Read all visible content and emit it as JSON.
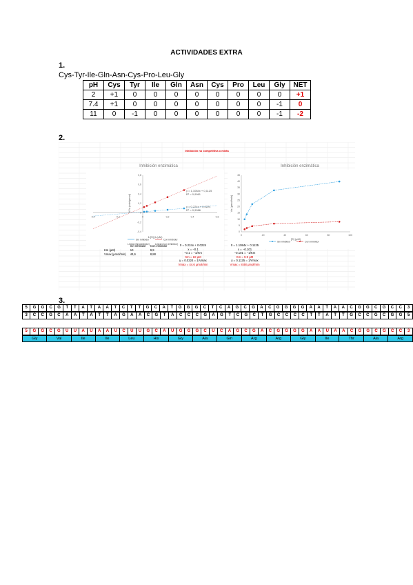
{
  "title": "ACTIVIDADES EXTRA",
  "sections": [
    "1.",
    "2.",
    "3."
  ],
  "sequence": "Cys-Tyr-Ile-Gln-Asn-Cys-Pro-Leu-Gly",
  "charge_table": {
    "headers": [
      "pH",
      "Cys",
      "Tyr",
      "Ile",
      "Gln",
      "Asn",
      "Cys",
      "Pro",
      "Leu",
      "Gly",
      "NET"
    ],
    "rows": [
      [
        "2",
        "+1",
        "0",
        "0",
        "0",
        "0",
        "0",
        "0",
        "0",
        "0",
        "+1"
      ],
      [
        "7.4",
        "+1",
        "0",
        "0",
        "0",
        "0",
        "0",
        "0",
        "0",
        "-1",
        "0"
      ],
      [
        "11",
        "0",
        "-1",
        "0",
        "0",
        "0",
        "0",
        "0",
        "0",
        "-1",
        "-2"
      ]
    ]
  },
  "figure_header": "Inhibición no competitiva o mixta",
  "chart_data": [
    {
      "type": "scatter",
      "title": "Inhibición enzimática",
      "xlabel": "1/[S] (L/μM)",
      "ylabel": "1/Vo (min/μmol)",
      "xlim": [
        -0.4,
        0.6
      ],
      "ylim": [
        -0.4,
        0.8
      ],
      "series": [
        {
          "name": "Sin inhibidor",
          "color": "#2f9fe0",
          "x": [
            0.011,
            0.033,
            0.1,
            0.2,
            0.333
          ],
          "y": [
            0.025,
            0.03,
            0.045,
            0.067,
            0.097
          ]
        },
        {
          "name": "Con inhibidor",
          "color": "#d42020",
          "x": [
            0.011,
            0.033,
            0.1,
            0.2,
            0.333
          ],
          "y": [
            0.125,
            0.15,
            0.224,
            0.336,
            0.485
          ]
        }
      ],
      "legend": [
        "Sin inhibidor",
        "Con inhibidor",
        "Lineal (Sin inhibidor)",
        "Lineal (Con inhibidor)"
      ],
      "annotations": [
        "y = 1,1084x + 0,1125",
        "R² = 0,9961",
        "y = 0,224x + 0,0224",
        "R² = 0,9986"
      ],
      "xticks": [
        "-0,4",
        "-0,2",
        "0",
        "0,2",
        "0,4",
        "0,6"
      ],
      "yticks": [
        "-0,4",
        "-0,2",
        "0",
        "0,2",
        "0,4",
        "0,6",
        "0,8"
      ]
    },
    {
      "type": "line",
      "title": "Inhibición enzimática",
      "xlabel": "[S] (μM)",
      "ylabel": "Vo (μmol/min)",
      "xlim": [
        0,
        100
      ],
      "ylim": [
        0,
        45
      ],
      "series": [
        {
          "name": "Sin inhibidor",
          "color": "#2f9fe0",
          "x": [
            3,
            5,
            10,
            30,
            90
          ],
          "y": [
            10,
            14,
            22,
            33,
            40
          ]
        },
        {
          "name": "Con inhibidor",
          "color": "#d42020",
          "x": [
            3,
            5,
            10,
            30,
            90
          ],
          "y": [
            2,
            3,
            4.5,
            6.5,
            8
          ]
        }
      ],
      "xticks": [
        "0",
        "20",
        "40",
        "60",
        "80",
        "100"
      ],
      "yticks": [
        "0",
        "5",
        "10",
        "15",
        "20",
        "25",
        "30",
        "35",
        "40",
        "45"
      ]
    }
  ],
  "kinetics": {
    "headers": [
      "",
      "Sin inhibidor",
      "Con inhibidor"
    ],
    "rows": [
      [
        "Km (μM)",
        "10",
        "9,9"
      ],
      [
        "Vmax (μmol/min)",
        "44,6",
        "8,88"
      ]
    ]
  },
  "equations_left": [
    "0 = 0.224x + 0.0224",
    "x = −0.1",
    "−0.1 = −1/Km",
    "Km = 10 μM",
    "y = 0.0224 = 1/Vmax",
    "Vmax = 44.6 μmol/min"
  ],
  "equations_right": [
    "0 = 1.1084x + 0.1125",
    "x = −0.101",
    "−0.101 = −1/Km",
    "Km = 9.9 μM",
    "y = 0.1125 = 1/Vmax",
    "Vmax = 8.88 μmol/min"
  ],
  "dna_top": [
    "5",
    "G",
    "G",
    "C",
    "G",
    "T",
    "T",
    "A",
    "T",
    "A",
    "A",
    "T",
    "C",
    "T",
    "T",
    "G",
    "C",
    "A",
    "T",
    "G",
    "G",
    "G",
    "C",
    "T",
    "C",
    "A",
    "G",
    "C",
    "G",
    "A",
    "C",
    "G",
    "G",
    "G",
    "G",
    "A",
    "A",
    "T",
    "A",
    "A",
    "C",
    "G",
    "G",
    "C",
    "G",
    "C",
    "C",
    "3"
  ],
  "dna_bottom": [
    "3",
    "C",
    "C",
    "G",
    "C",
    "A",
    "A",
    "T",
    "A",
    "T",
    "T",
    "A",
    "G",
    "A",
    "A",
    "C",
    "G",
    "T",
    "A",
    "C",
    "C",
    "C",
    "G",
    "A",
    "G",
    "T",
    "C",
    "G",
    "C",
    "T",
    "G",
    "C",
    "C",
    "C",
    "C",
    "T",
    "T",
    "A",
    "T",
    "T",
    "G",
    "C",
    "C",
    "G",
    "C",
    "G",
    "G",
    "5"
  ],
  "rna": [
    "5",
    "G",
    "G",
    "C",
    "G",
    "U",
    "U",
    "A",
    "U",
    "A",
    "A",
    "U",
    "C",
    "U",
    "U",
    "G",
    "C",
    "A",
    "U",
    "G",
    "G",
    "G",
    "C",
    "U",
    "C",
    "A",
    "G",
    "C",
    "G",
    "A",
    "C",
    "G",
    "G",
    "G",
    "G",
    "A",
    "A",
    "U",
    "A",
    "A",
    "C",
    "G",
    "G",
    "C",
    "G",
    "C",
    "C",
    "3"
  ],
  "amino_acids": [
    "Gly",
    "Val",
    "Ile",
    "Ile",
    "Leu",
    "His",
    "Gly",
    "Ala",
    "Gln",
    "Arg",
    "Arg",
    "Gly",
    "Ile",
    "Thr",
    "Ala",
    "Arg"
  ]
}
